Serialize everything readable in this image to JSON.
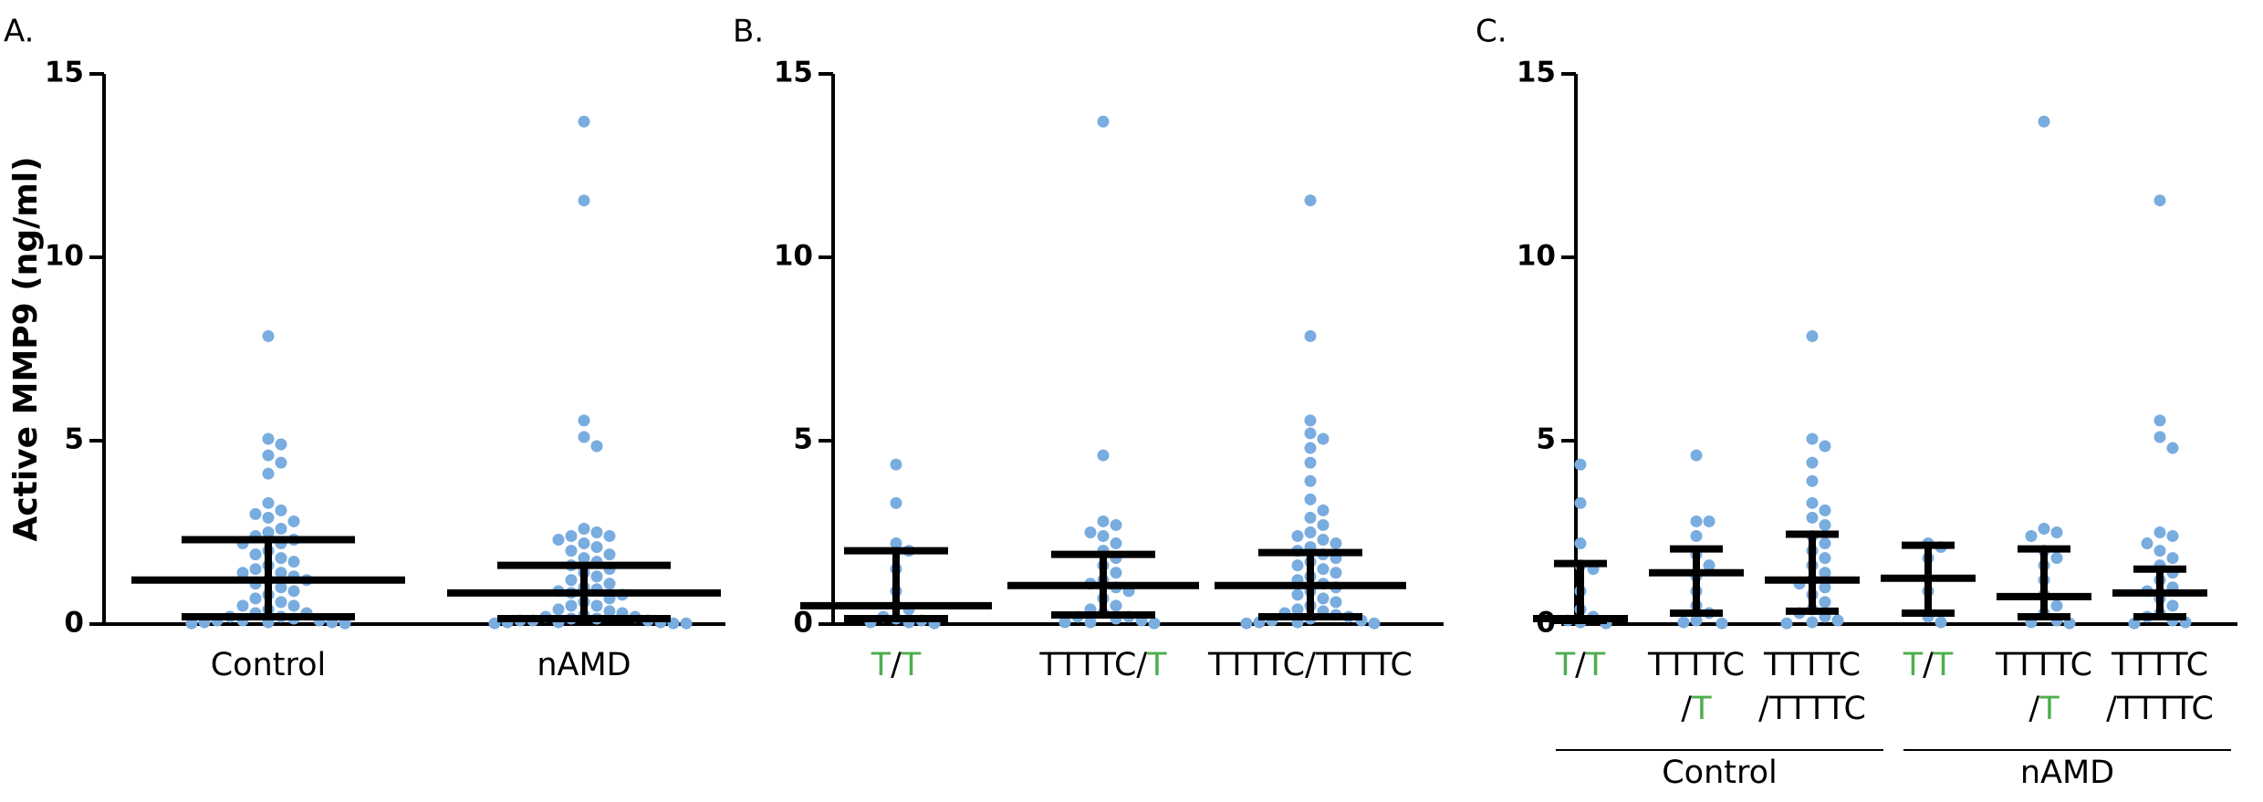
{
  "chart_data": [
    {
      "type": "dotplot",
      "panel_label": "A.",
      "ylabel": "Active MMP9 (ng/ml)",
      "ylim": [
        0,
        15
      ],
      "yticks": [
        0,
        5,
        10,
        15
      ],
      "point_color": "#79acdf",
      "categories": [
        [
          [
            {
              "text": "Control"
            }
          ]
        ],
        [
          [
            {
              "text": "nAMD"
            }
          ]
        ]
      ],
      "values": [
        [
          7.85,
          5.05,
          4.9,
          4.6,
          4.4,
          4.1,
          3.3,
          3.1,
          3.0,
          2.9,
          2.8,
          2.6,
          2.5,
          2.4,
          2.3,
          2.2,
          2.2,
          2.0,
          1.9,
          1.8,
          1.7,
          1.6,
          1.5,
          1.4,
          1.4,
          1.3,
          1.2,
          1.2,
          1.1,
          1.0,
          0.9,
          0.8,
          0.7,
          0.6,
          0.5,
          0.5,
          0.4,
          0.3,
          0.3,
          0.2,
          0.2,
          0.15,
          0.1,
          0.1,
          0.1,
          0.05,
          0.05,
          0.05,
          0.02,
          0.02
        ],
        [
          13.7,
          11.55,
          5.55,
          5.1,
          4.85,
          2.6,
          2.5,
          2.4,
          2.4,
          2.3,
          2.2,
          2.1,
          2.0,
          1.9,
          1.8,
          1.7,
          1.6,
          1.5,
          1.4,
          1.3,
          1.2,
          1.1,
          1.0,
          0.95,
          0.9,
          0.85,
          0.8,
          0.7,
          0.6,
          0.5,
          0.5,
          0.4,
          0.35,
          0.3,
          0.25,
          0.2,
          0.2,
          0.15,
          0.15,
          0.1,
          0.1,
          0.1,
          0.05,
          0.05,
          0.05,
          0.02,
          0.02,
          0.02
        ]
      ],
      "median": [
        1.2,
        0.85
      ],
      "error_low": [
        0.2,
        0.15
      ],
      "error_high": [
        2.3,
        1.6
      ]
    },
    {
      "type": "dotplot",
      "panel_label": "B.",
      "ylim": [
        0,
        15
      ],
      "yticks": [
        0,
        5,
        10,
        15
      ],
      "point_color": "#79acdf",
      "categories": [
        [
          [
            {
              "text": "T",
              "color": "#4cae4c"
            },
            {
              "text": "/"
            },
            {
              "text": "T",
              "color": "#4cae4c"
            }
          ]
        ],
        [
          [
            {
              "text": "TTTTC/"
            },
            {
              "text": "T",
              "color": "#4cae4c"
            }
          ]
        ],
        [
          [
            {
              "text": "TTTTC/TTTTC"
            }
          ]
        ]
      ],
      "values": [
        [
          4.35,
          3.3,
          2.2,
          2.0,
          1.5,
          0.9,
          0.5,
          0.4,
          0.2,
          0.15,
          0.1,
          0.05,
          0.05,
          0.02
        ],
        [
          13.7,
          4.6,
          2.8,
          2.7,
          2.5,
          2.4,
          2.2,
          2.0,
          1.8,
          1.6,
          1.4,
          1.2,
          1.1,
          1.0,
          0.9,
          0.7,
          0.5,
          0.4,
          0.3,
          0.2,
          0.2,
          0.15,
          0.1,
          0.05,
          0.05,
          0.02
        ],
        [
          11.55,
          7.85,
          5.55,
          5.2,
          5.05,
          4.8,
          4.4,
          3.9,
          3.4,
          3.1,
          2.9,
          2.7,
          2.5,
          2.4,
          2.3,
          2.2,
          2.1,
          2.0,
          1.9,
          1.8,
          1.7,
          1.6,
          1.5,
          1.4,
          1.3,
          1.2,
          1.1,
          1.0,
          0.9,
          0.8,
          0.7,
          0.6,
          0.5,
          0.4,
          0.35,
          0.3,
          0.25,
          0.2,
          0.15,
          0.1,
          0.1,
          0.05,
          0.05,
          0.02,
          0.02
        ]
      ],
      "median": [
        0.5,
        1.05,
        1.05
      ],
      "error_low": [
        0.15,
        0.25,
        0.2
      ],
      "error_high": [
        2.0,
        1.9,
        1.95
      ]
    },
    {
      "type": "dotplot",
      "panel_label": "C.",
      "ylim": [
        0,
        15
      ],
      "yticks": [
        0,
        5,
        10,
        15
      ],
      "point_color": "#79acdf",
      "categories": [
        [
          [
            {
              "text": "T",
              "color": "#4cae4c"
            },
            {
              "text": "/"
            },
            {
              "text": "T",
              "color": "#4cae4c"
            }
          ]
        ],
        [
          [
            {
              "text": "TTTTC"
            }
          ],
          [
            {
              "text": "/"
            },
            {
              "text": "T",
              "color": "#4cae4c"
            }
          ]
        ],
        [
          [
            {
              "text": "TTTTC"
            }
          ],
          [
            {
              "text": "/TTTTC"
            }
          ]
        ],
        [
          [
            {
              "text": "T",
              "color": "#4cae4c"
            },
            {
              "text": "/"
            },
            {
              "text": "T",
              "color": "#4cae4c"
            }
          ]
        ],
        [
          [
            {
              "text": "TTTTC"
            }
          ],
          [
            {
              "text": "/"
            },
            {
              "text": "T",
              "color": "#4cae4c"
            }
          ]
        ],
        [
          [
            {
              "text": "TTTTC"
            }
          ],
          [
            {
              "text": "/TTTTC"
            }
          ]
        ]
      ],
      "category_groups": [
        {
          "label": "Control",
          "categories": [
            0,
            1,
            2
          ]
        },
        {
          "label": "nAMD",
          "categories": [
            3,
            4,
            5
          ]
        }
      ],
      "values": [
        [
          4.35,
          3.3,
          2.2,
          1.6,
          1.5,
          0.9,
          0.4,
          0.2,
          0.1,
          0.05,
          0.02
        ],
        [
          4.6,
          2.8,
          2.8,
          2.4,
          1.9,
          1.6,
          1.3,
          0.9,
          0.5,
          0.3,
          0.1,
          0.05,
          0.02
        ],
        [
          7.85,
          5.05,
          4.85,
          4.4,
          3.9,
          3.3,
          3.1,
          2.9,
          2.7,
          2.4,
          2.2,
          2.0,
          1.8,
          1.6,
          1.4,
          1.2,
          1.1,
          1.0,
          0.8,
          0.6,
          0.4,
          0.3,
          0.2,
          0.1,
          0.05,
          0.02
        ],
        [
          2.2,
          2.1,
          1.8,
          0.9,
          0.2,
          0.05
        ],
        [
          13.7,
          2.6,
          2.5,
          2.4,
          2.0,
          1.8,
          1.6,
          1.2,
          0.8,
          0.5,
          0.3,
          0.1,
          0.05,
          0.02
        ],
        [
          11.55,
          5.55,
          5.1,
          4.8,
          2.5,
          2.4,
          2.2,
          2.0,
          1.8,
          1.6,
          1.4,
          1.2,
          1.0,
          0.9,
          0.7,
          0.5,
          0.3,
          0.2,
          0.1,
          0.05,
          0.02
        ]
      ],
      "median": [
        0.15,
        1.4,
        1.2,
        1.25,
        0.75,
        0.85
      ],
      "error_low": [
        0.1,
        0.3,
        0.35,
        0.3,
        0.2,
        0.2
      ],
      "error_high": [
        1.65,
        2.05,
        2.45,
        2.15,
        2.05,
        1.5
      ]
    }
  ]
}
